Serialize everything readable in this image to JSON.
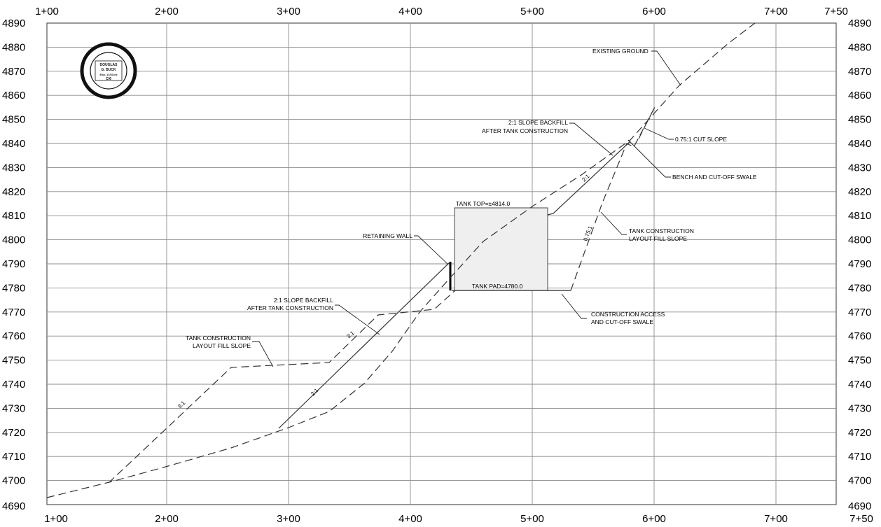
{
  "stations_top": [
    "1+00",
    "2+00",
    "3+00",
    "4+00",
    "5+00",
    "6+00",
    "7+00",
    "7+50"
  ],
  "stations_bottom": [
    "1+00",
    "2+00",
    "3+00",
    "4+00",
    "5+00",
    "6+00",
    "7+00",
    "7+50"
  ],
  "elevations": [
    "4890",
    "4880",
    "4870",
    "4860",
    "4850",
    "4840",
    "4830",
    "4820",
    "4810",
    "4800",
    "4790",
    "4780",
    "4770",
    "4760",
    "4750",
    "4740",
    "4730",
    "4720",
    "4710",
    "4700",
    "4690"
  ],
  "seal": {
    "name_line1": "DOUGLAS",
    "name_line2": "G. BUCK",
    "exp": "Exp. 12/31/xx",
    "discipline": "C/6",
    "number": "No. 52086",
    "ring": "PROFESSIONAL ENGINEER · STATE OF ARIZONA"
  },
  "labels": {
    "existing_ground": "EXISTING GROUND",
    "backfill_upper_line1": "2:1 SLOPE BACKFILL",
    "backfill_upper_line2": "AFTER TANK CONSTRUCTION",
    "cut_slope": "0.75:1 CUT SLOPE",
    "bench": "BENCH AND CUT-OFF SWALE",
    "tank_top": "TANK TOP=±4814.0",
    "retaining_wall": "RETAINING WALL",
    "layout_fill_right_line1": "TANK CONSTRUCTION",
    "layout_fill_right_line2": "LAYOUT FILL SLOPE",
    "tank_pad": "TANK PAD=4780.0",
    "backfill_lower_line1": "2:1 SLOPE BACKFILL",
    "backfill_lower_line2": "AFTER TANK CONSTRUCTION",
    "construction_access_line1": "CONSTRUCTION ACCESS",
    "construction_access_line2": "AND CUT-OFF SWALE",
    "layout_fill_left_line1": "TANK CONSTRUCTION",
    "layout_fill_left_line2": "LAYOUT FILL SLOPE"
  },
  "slope_labels": {
    "upper_backfill": "2:1",
    "cut": "0.75:1",
    "mid_fill": "3:1",
    "lower_backfill": "2:1",
    "lower_fill": "3:1"
  }
}
